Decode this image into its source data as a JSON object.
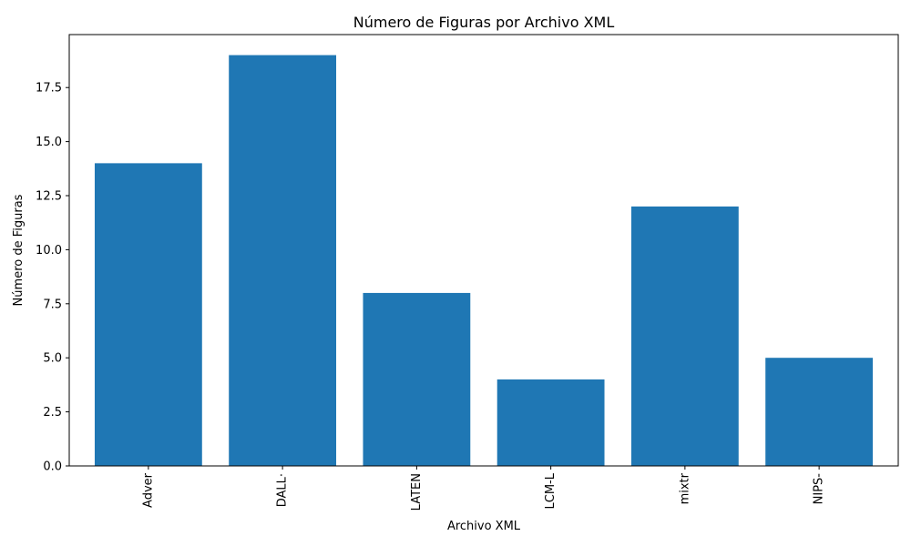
{
  "chart_data": {
    "type": "bar",
    "title": "Número de Figuras por Archivo XML",
    "xlabel": "Archivo XML",
    "ylabel": "Número de Figuras",
    "categories": [
      "Adver",
      "DALL·",
      "LATEN",
      "LCM-L",
      "mixtr",
      "NIPS-"
    ],
    "values": [
      14,
      19,
      8,
      4,
      12,
      5
    ],
    "ylim": [
      0,
      19.95
    ],
    "yticks": [
      0.0,
      2.5,
      5.0,
      7.5,
      10.0,
      12.5,
      15.0,
      17.5
    ],
    "ytick_labels": [
      "0.0",
      "2.5",
      "5.0",
      "7.5",
      "10.0",
      "12.5",
      "15.0",
      "17.5"
    ],
    "bar_color": "#1f77b4",
    "grid": false,
    "x_tick_rotation": "vertical"
  }
}
